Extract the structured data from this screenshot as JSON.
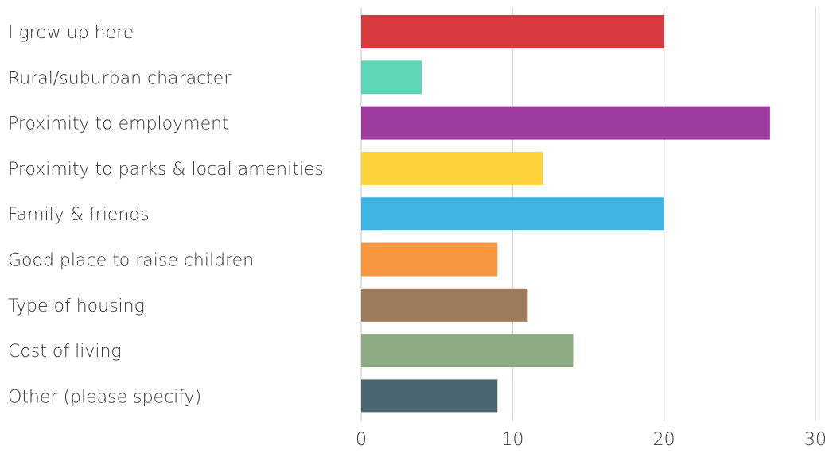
{
  "chart_data": {
    "type": "bar",
    "orientation": "horizontal",
    "title": "",
    "xlabel": "",
    "ylabel": "",
    "xlim": [
      0,
      30
    ],
    "x_ticks": [
      "0",
      "10",
      "20",
      "30"
    ],
    "grid": true,
    "legend": "none",
    "categories": [
      "I grew up here",
      "Rural/suburban character",
      "Proximity to employment",
      "Proximity to parks & local amenities",
      "Family & friends",
      "Good place to raise children",
      "Type of housing",
      "Cost of living",
      "Other (please specify)"
    ],
    "values": [
      20,
      4,
      27,
      12,
      20,
      9,
      11,
      14,
      9
    ],
    "colors": [
      "#d73a3f",
      "#5fd6b8",
      "#9d3c9e",
      "#fdd33c",
      "#3eb5e0",
      "#f6973f",
      "#9c7a5a",
      "#8eab86",
      "#4b6670"
    ]
  }
}
